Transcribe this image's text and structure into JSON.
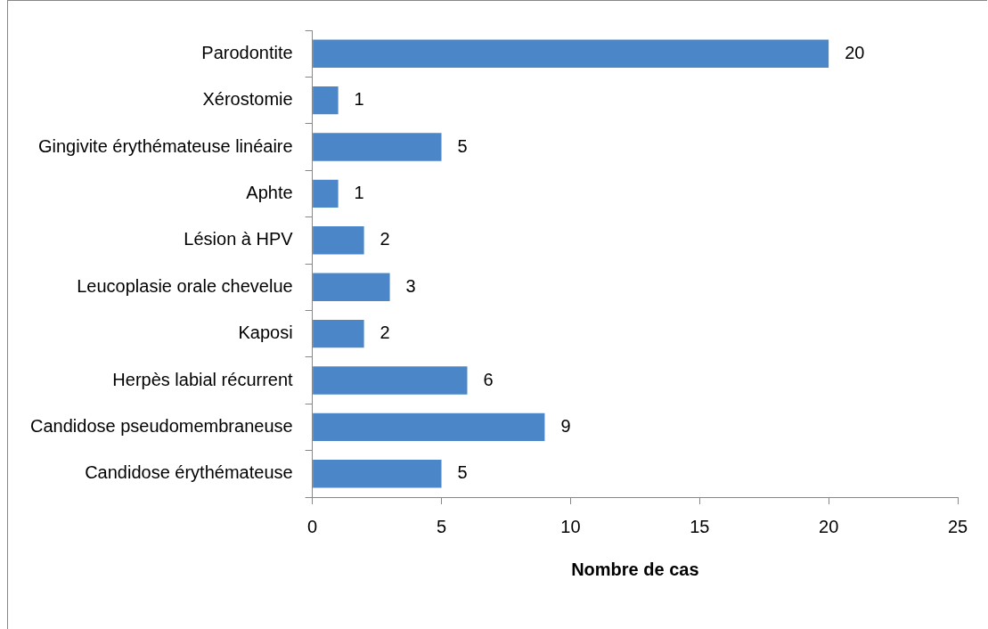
{
  "chart_data": {
    "type": "bar",
    "orientation": "horizontal",
    "xlabel": "Nombre de cas",
    "categories": [
      "Parodontite",
      "Xérostomie",
      "Gingivite érythémateuse linéaire",
      "Aphte",
      "Lésion à HPV",
      "Leucoplasie orale chevelue",
      "Kaposi",
      "Herpès labial récurrent",
      "Candidose pseudomembraneuse",
      "Candidose érythémateuse"
    ],
    "values": [
      20,
      1,
      5,
      1,
      2,
      3,
      2,
      6,
      9,
      5
    ],
    "color": "#4a86c8",
    "xlim": [
      0,
      25
    ],
    "xticks": [
      0,
      5,
      10,
      15,
      20,
      25
    ],
    "grid": false,
    "legend": false,
    "data_labels": true
  }
}
